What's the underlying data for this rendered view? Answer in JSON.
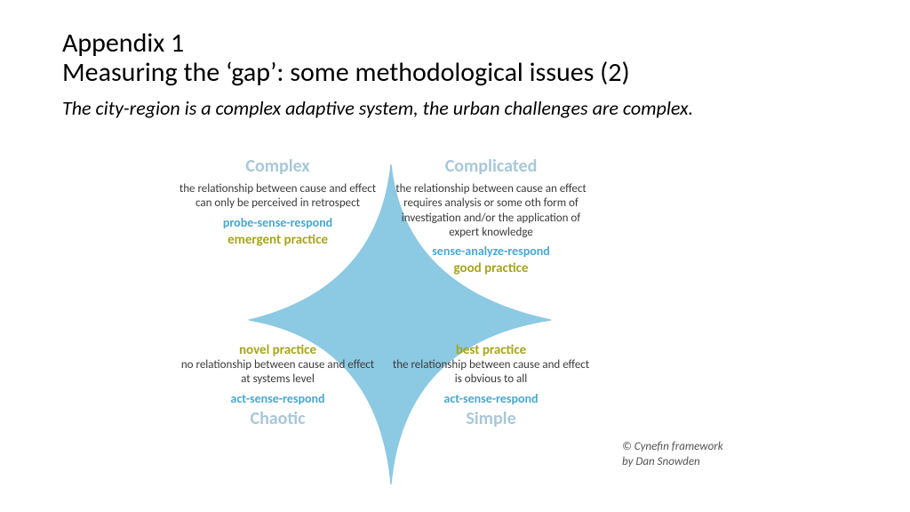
{
  "title": {
    "appendix": "Appendix 1",
    "heading": "Measuring the ‘gap’: some methodological issues (2)",
    "subtitle": "The city-region is a complex adaptive system, the urban challenges are complex."
  },
  "colors": {
    "blue": "#4aa7d1",
    "blue_solid": "#8cc9e3",
    "olive": "#a7a51c",
    "title_faded": "#a9c8d9",
    "text": "#3a3a3a",
    "credit": "#555555",
    "background": "#ffffff"
  },
  "diagram": {
    "type": "quadrant",
    "credit_line1": "© Cynefin framework",
    "credit_line2": "by Dan Snowden",
    "quadrants": {
      "tl": {
        "title": "Complex",
        "title_color": "title_faded",
        "order": [
          "title",
          "desc",
          "action",
          "practice"
        ],
        "desc": "the relationship between cause and effect can only be perceived in retrospect",
        "action": "probe-sense-respond",
        "action_color": "blue",
        "practice": "emergent practice",
        "practice_color": "olive"
      },
      "tr": {
        "title": "Complicated",
        "title_color": "title_faded",
        "order": [
          "title",
          "desc",
          "action",
          "practice"
        ],
        "desc": "the relationship between cause an effect requires analysis or some oth form of investigation and/or the application of expert knowledge",
        "action": "sense-analyze-respond",
        "action_color": "blue",
        "practice": "good practice",
        "practice_color": "olive"
      },
      "bl": {
        "title": "Chaotic",
        "title_color": "title_faded",
        "order": [
          "practice",
          "desc",
          "action",
          "title"
        ],
        "desc": "no relationship between cause and effect at systems level",
        "action": "act-sense-respond",
        "action_color": "blue",
        "practice": "novel practice",
        "practice_color": "olive"
      },
      "br": {
        "title": "Simple",
        "title_color": "title_faded",
        "order": [
          "practice",
          "desc",
          "action",
          "title"
        ],
        "desc": "the relationship between cause and effect is obvious to all",
        "action": "act-sense-respond",
        "action_color": "blue",
        "practice": "best practice",
        "practice_color": "olive"
      }
    },
    "center_shape": {
      "fill_color": "blue_solid",
      "line_color": "blue_solid",
      "line_width": 1.2
    }
  }
}
